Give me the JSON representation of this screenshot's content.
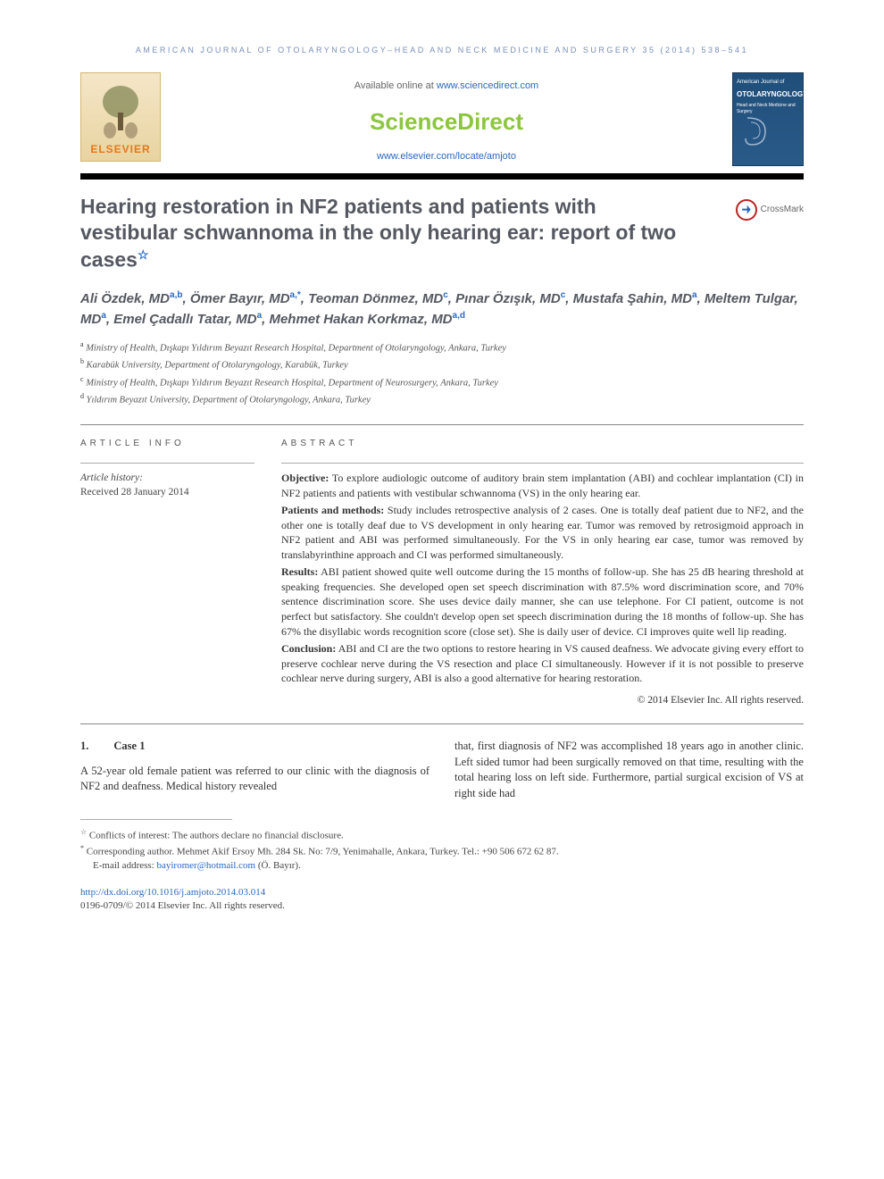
{
  "journal_header": "AMERICAN JOURNAL OF OTOLARYNGOLOGY–HEAD AND NECK MEDICINE AND SURGERY 35 (2014) 538–541",
  "available_text_prefix": "Available online at ",
  "available_link": "www.sciencedirect.com",
  "sd_brand": "ScienceDirect",
  "locate_link": "www.elsevier.com/locate/amjoto",
  "elsevier_label": "ELSEVIER",
  "cover": {
    "line1": "American Journal of",
    "name": "OTOLARYNGOLOGY",
    "sub": "Head and Neck Medicine and Surgery"
  },
  "title": "Hearing restoration in NF2 patients and patients with vestibular schwannoma in the only hearing ear: report of two cases",
  "title_star": "☆",
  "crossmark_label": "CrossMark",
  "authors_html": [
    {
      "name": "Ali Özdek, MD",
      "sup": "a,b"
    },
    {
      "name": "Ömer Bayır, MD",
      "sup": "a,*"
    },
    {
      "name": "Teoman Dönmez, MD",
      "sup": "c"
    },
    {
      "name": "Pınar Özışık, MD",
      "sup": "c"
    },
    {
      "name": "Mustafa Şahin, MD",
      "sup": "a"
    },
    {
      "name": "Meltem Tulgar, MD",
      "sup": "a"
    },
    {
      "name": "Emel Çadallı Tatar, MD",
      "sup": "a"
    },
    {
      "name": "Mehmet Hakan Korkmaz, MD",
      "sup": "a,d"
    }
  ],
  "affiliations": [
    {
      "key": "a",
      "text": "Ministry of Health, Dışkapı Yıldırım Beyazıt Research Hospital, Department of Otolaryngology, Ankara, Turkey"
    },
    {
      "key": "b",
      "text": "Karabük University, Department of Otolaryngology, Karabük, Turkey"
    },
    {
      "key": "c",
      "text": "Ministry of Health, Dışkapı Yıldırım Beyazıt Research Hospital, Department of Neurosurgery, Ankara, Turkey"
    },
    {
      "key": "d",
      "text": "Yıldırım Beyazıt University, Department of Otolaryngology, Ankara, Turkey"
    }
  ],
  "article_info_label": "ARTICLE INFO",
  "abstract_label": "ABSTRACT",
  "history_label": "Article history:",
  "history_date": "Received 28 January 2014",
  "abstract": {
    "objective_label": "Objective:",
    "objective": " To explore audiologic outcome of auditory brain stem implantation (ABI) and cochlear implantation (CI) in NF2 patients and patients with vestibular schwannoma (VS) in the only hearing ear.",
    "patients_label": "Patients and methods:",
    "patients": " Study includes retrospective analysis of 2 cases. One is totally deaf patient due to NF2, and the other one is totally deaf due to VS development in only hearing ear. Tumor was removed by retrosigmoid approach in NF2 patient and ABI was performed simultaneously. For the VS in only hearing ear case, tumor was removed by translabyrinthine approach and CI was performed simultaneously.",
    "results_label": "Results:",
    "results": " ABI patient showed quite well outcome during the 15 months of follow-up. She has 25 dB hearing threshold at speaking frequencies. She developed open set speech discrimination with 87.5% word discrimination score, and 70% sentence discrimination score. She uses device daily manner, she can use telephone. For CI patient, outcome is not perfect but satisfactory. She couldn't develop open set speech discrimination during the 18 months of follow-up. She has 67% the disyllabic words recognition score (close set). She is daily user of device. CI improves quite well lip reading.",
    "conclusion_label": "Conclusion:",
    "conclusion": " ABI and CI are the two options to restore hearing in VS caused deafness. We advocate giving every effort to preserve cochlear nerve during the VS resection and place CI simultaneously. However if it is not possible to preserve cochlear nerve during surgery, ABI is also a good alternative for hearing restoration."
  },
  "copyright": "© 2014 Elsevier Inc. All rights reserved.",
  "case_num": "1.",
  "case_title": "Case 1",
  "body_col1": "A 52-year old female patient was referred to our clinic with the diagnosis of NF2 and deafness. Medical history revealed",
  "body_col2": "that, first diagnosis of NF2 was accomplished 18 years ago in another clinic. Left sided tumor had been surgically removed on that time, resulting with the total hearing loss on left side. Furthermore, partial surgical excision of VS at right side had",
  "footnotes": {
    "conflict_sup": "☆",
    "conflict": " Conflicts of interest: The authors declare no financial disclosure.",
    "corr_sup": "*",
    "corr": " Corresponding author. Mehmet Akif Ersoy Mh. 284 Sk. No: 7/9, Yenimahalle, Ankara, Turkey. Tel.: +90 506 672 62 87.",
    "email_label": "E-mail address: ",
    "email": "bayiromer@hotmail.com",
    "email_suffix": " (Ö. Bayır)."
  },
  "doi": "http://dx.doi.org/10.1016/j.amjoto.2014.03.014",
  "issn_line": "0196-0709/© 2014 Elsevier Inc. All rights reserved.",
  "colors": {
    "link": "#2968c0",
    "sd_green": "#8dc63f",
    "elsevier_orange": "#e67817",
    "header_blue": "#7a8fb8",
    "title_gray": "#555861"
  }
}
